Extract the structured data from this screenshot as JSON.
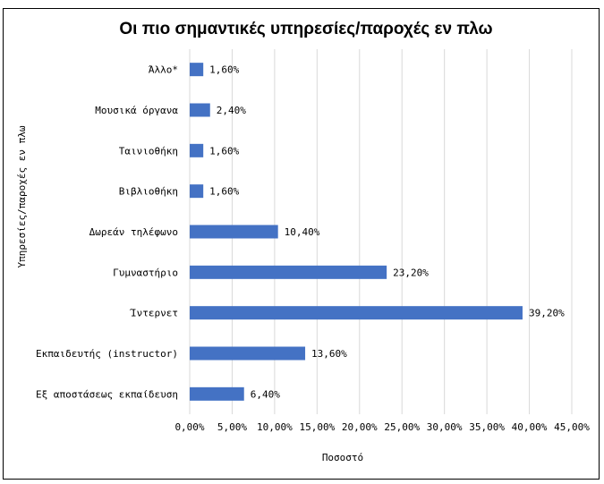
{
  "chart_data": {
    "type": "bar",
    "orientation": "horizontal",
    "title": "Οι πιο σημαντικές υπηρεσίες/παροχές εν πλω",
    "xlabel": "Ποσοστό",
    "ylabel": "Υπηρεσίες/παροχές εν πλω",
    "categories": [
      "Άλλο*",
      "Μουσικά όργανα",
      "Ταινιοθήκη",
      "Βιβλιοθήκη",
      "Δωρεάν τηλέφωνο",
      "Γυμναστήριο",
      "Ίντερνετ",
      "Εκπαιδευτής (instructor)",
      "Εξ αποστάσεως εκπαίδευση"
    ],
    "values": [
      1.6,
      2.4,
      1.6,
      1.6,
      10.4,
      23.2,
      39.2,
      13.6,
      6.4
    ],
    "data_labels": [
      "1,60%",
      "2,40%",
      "1,60%",
      "1,60%",
      "10,40%",
      "23,20%",
      "39,20%",
      "13,60%",
      "6,40%"
    ],
    "x_ticks": [
      0,
      5,
      10,
      15,
      20,
      25,
      30,
      35,
      40,
      45
    ],
    "x_tick_labels": [
      "0,00%",
      "5,00%",
      "10,00%",
      "15,00%",
      "20,00%",
      "25,00%",
      "30,00%",
      "35,00%",
      "40,00%",
      "45,00%"
    ],
    "xlim": [
      0,
      45
    ],
    "grid": true,
    "legend": "none",
    "bar_color": "#4472c4"
  }
}
